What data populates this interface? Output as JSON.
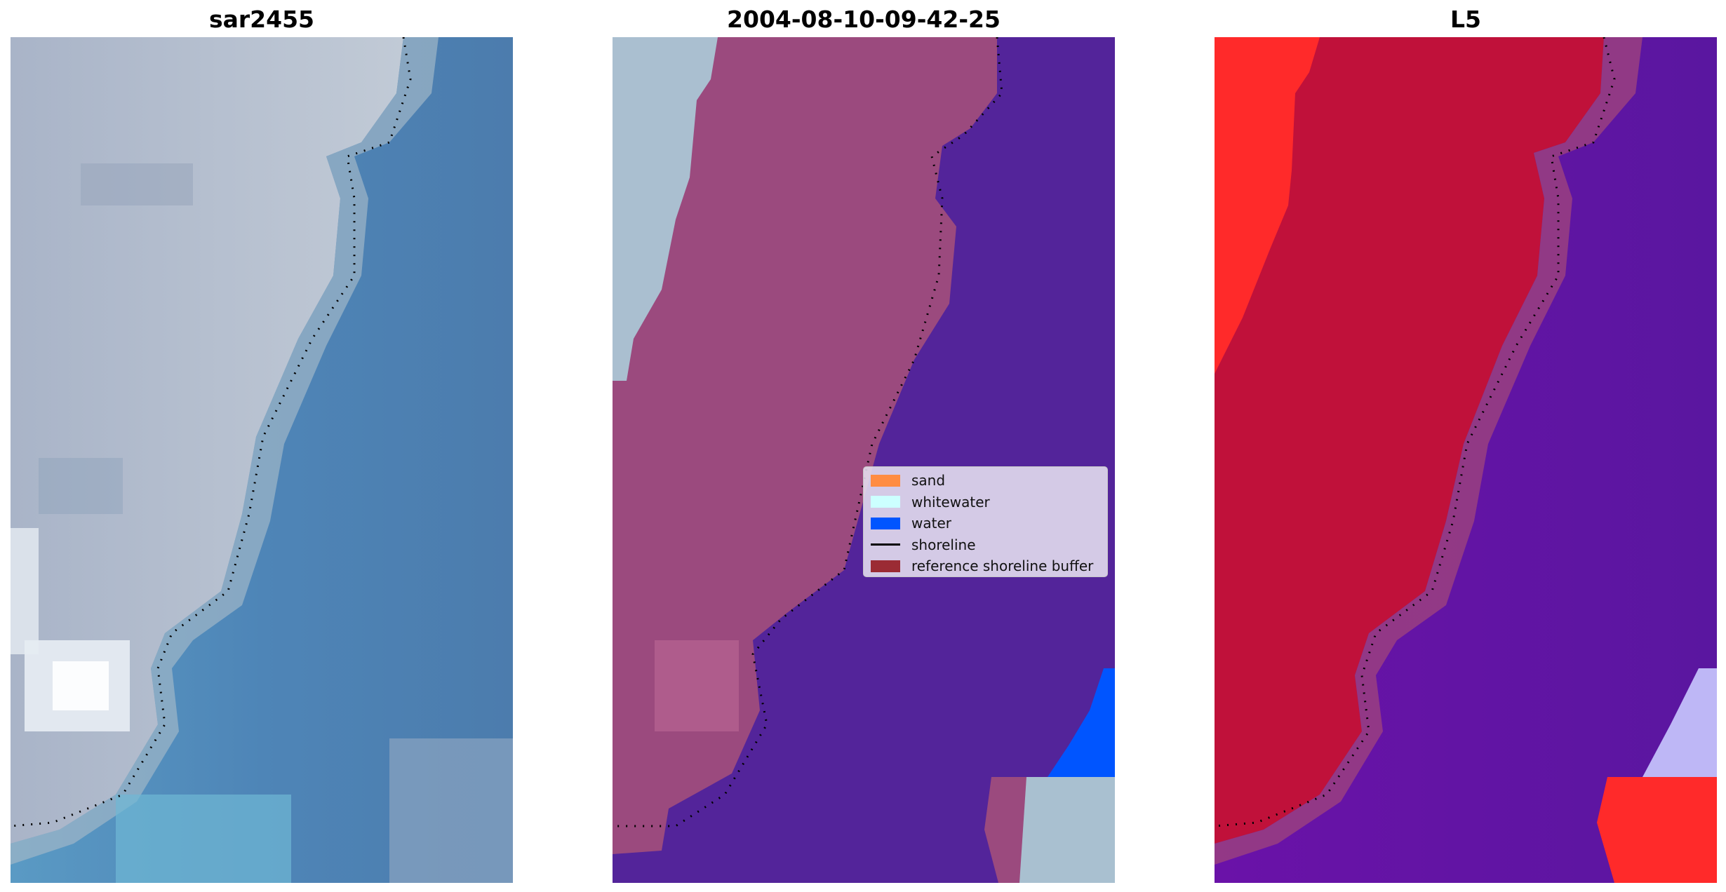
{
  "panels": [
    {
      "title": "sar2455",
      "content": "rgb-image",
      "icon": "satellite-rgb-image"
    },
    {
      "title": "2004-08-10-09-42-25",
      "content": "classified-image",
      "icon": "classification-overlay"
    },
    {
      "title": "L5",
      "content": "probability-map",
      "icon": "probability-heatmap"
    }
  ],
  "legend": {
    "items": [
      {
        "label": "sand",
        "color": "#ff8c42",
        "kind": "patch"
      },
      {
        "label": "whitewater",
        "color": "#ccffff",
        "kind": "patch"
      },
      {
        "label": "water",
        "color": "#0055ff",
        "kind": "patch"
      },
      {
        "label": "shoreline",
        "color": "#000000",
        "kind": "line"
      },
      {
        "label": "reference shoreline buffer",
        "color": "#9b2b34",
        "kind": "patch"
      }
    ]
  },
  "colors": {
    "rgb_land": "#b8c4d2",
    "rgb_water": "#4f7eb0",
    "class_sand": "#9b4a7e",
    "class_water": "#53249a",
    "class_whitewater": "#a9c0d0",
    "class_water_edge": "#0055ff",
    "prob_land": "#c0113a",
    "prob_water": "#6a14a6",
    "prob_high": "#ff2a2a"
  }
}
